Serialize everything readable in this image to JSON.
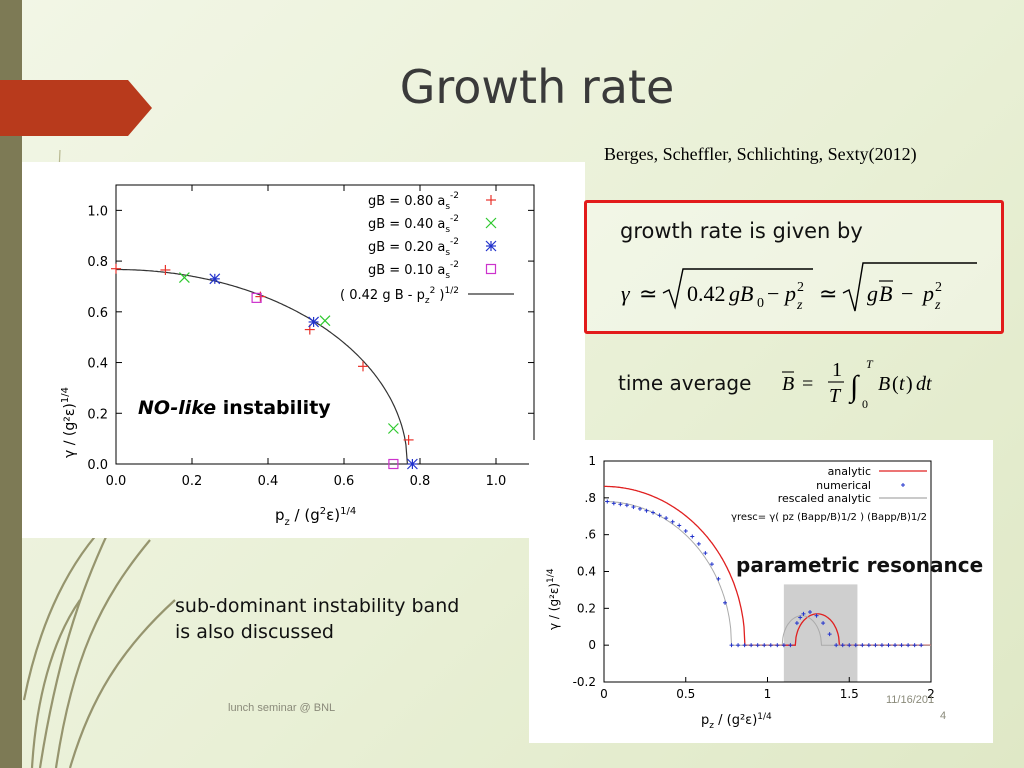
{
  "slide": {
    "title": "Growth rate",
    "citation": "Berges, Scheffler, Schlichting, Sexty(2012)",
    "formula_header": "growth rate is given by",
    "time_average_label": "time average",
    "subdominant_text_1": "sub-dominant instability band",
    "subdominant_text_2": "is also discussed",
    "footer_left": "lunch seminar @ BNL",
    "footer_date": "11/16/201",
    "footer_page": "4",
    "colors": {
      "accent": "#b83a1c",
      "box_border": "#e21b1b",
      "strip": "#7d7a55"
    }
  },
  "chart_data": [
    {
      "type": "scatter",
      "annotation_1": "NO-like",
      "annotation_2": "instability",
      "xlabel_base": "p",
      "xlabel_sub": "z",
      "xlabel_rest": " / (g",
      "xlabel_sup1": "2",
      "xlabel_eps": "ε)",
      "xlabel_sup2": "1/4",
      "ylabel": "γ / (g²ε)",
      "ylabel_sup": "1/4",
      "xlim": [
        0.0,
        1.1
      ],
      "ylim": [
        0.0,
        1.1
      ],
      "xticks": [
        "0.0",
        "0.2",
        "0.4",
        "0.6",
        "0.8",
        "1.0"
      ],
      "yticks": [
        "0.0",
        "0.2",
        "0.4",
        "0.6",
        "0.8",
        "1.0"
      ],
      "series": [
        {
          "name": "gB = 0.80 a",
          "name_sub": "s",
          "name_sup": "-2",
          "marker": "plus",
          "color": "#e8322a",
          "x": [
            0.0,
            0.13,
            0.38,
            0.51,
            0.65,
            0.77
          ],
          "y": [
            0.77,
            0.765,
            0.66,
            0.53,
            0.385,
            0.095
          ]
        },
        {
          "name": "gB = 0.40 a",
          "name_sub": "s",
          "name_sup": "-2",
          "marker": "cross",
          "color": "#2ec92e",
          "x": [
            0.18,
            0.55,
            0.73
          ],
          "y": [
            0.735,
            0.565,
            0.14
          ]
        },
        {
          "name": "gB = 0.20 a",
          "name_sub": "s",
          "name_sup": "-2",
          "marker": "star",
          "color": "#2233cc",
          "x": [
            0.26,
            0.52,
            0.78
          ],
          "y": [
            0.73,
            0.56,
            0.0
          ]
        },
        {
          "name": "gB = 0.10 a",
          "name_sub": "s",
          "name_sup": "-2",
          "marker": "square",
          "color": "#cc33cc",
          "x": [
            0.37,
            0.73
          ],
          "y": [
            0.655,
            0.0
          ]
        }
      ],
      "curve": {
        "name": "( 0.42 g B - p",
        "name_sub": "z",
        "name_sup": "2",
        "name_rest": " )",
        "name_sup2": "1/2",
        "coef": 0.42,
        "gB": 1.4,
        "color": "#333333"
      }
    },
    {
      "type": "line",
      "annotation": "parametric resonance",
      "xlabel": "p",
      "xlabel_sub": "z",
      "xlabel_rest": " / (g²ε)",
      "xlabel_sup": "1/4",
      "ylabel": "γ / (g²ε)",
      "ylabel_sup": "1/4",
      "xlim": [
        0,
        2
      ],
      "ylim": [
        -0.2,
        1
      ],
      "xticks": [
        "0",
        "0.5",
        "1",
        "1.5",
        "2"
      ],
      "yticks": [
        "1",
        ".8",
        ".6",
        "0.4",
        "0.2",
        "0",
        "-0.2"
      ],
      "ytick_values": [
        1,
        0.8,
        0.6,
        0.4,
        0.2,
        0,
        -0.2
      ],
      "xtick_values": [
        0,
        0.5,
        1,
        1.5,
        2
      ],
      "shaded_band": [
        1.1,
        1.55
      ],
      "legend_formula": "γresc= γ( pz (Bapp/B)1/2 ) (Bapp/B)1/2",
      "series": [
        {
          "name": "analytic",
          "color": "#e02020",
          "style": "line"
        },
        {
          "name": "numerical",
          "color": "#2233cc",
          "style": "points",
          "x": [
            0.02,
            0.06,
            0.1,
            0.14,
            0.18,
            0.22,
            0.26,
            0.3,
            0.34,
            0.38,
            0.42,
            0.46,
            0.5,
            0.54,
            0.58,
            0.62,
            0.66,
            0.7,
            0.74,
            0.78,
            0.82,
            0.86,
            0.9,
            0.94,
            0.98,
            1.02,
            1.06,
            1.1,
            1.14,
            1.18,
            1.2,
            1.22,
            1.26,
            1.3,
            1.34,
            1.38,
            1.42,
            1.46,
            1.5,
            1.54,
            1.58,
            1.62,
            1.66,
            1.7,
            1.74,
            1.78,
            1.82,
            1.86,
            1.9,
            1.94
          ],
          "y": [
            0.78,
            0.77,
            0.765,
            0.76,
            0.75,
            0.74,
            0.73,
            0.72,
            0.705,
            0.69,
            0.67,
            0.65,
            0.62,
            0.59,
            0.55,
            0.5,
            0.44,
            0.36,
            0.23,
            0.0,
            0.0,
            0.0,
            0.0,
            0.0,
            0.0,
            0.0,
            0.0,
            0.0,
            0.0,
            0.12,
            0.15,
            0.17,
            0.18,
            0.16,
            0.12,
            0.06,
            0.0,
            0.0,
            0.0,
            0.0,
            0.0,
            0.0,
            0.0,
            0.0,
            0.0,
            0.0,
            0.0,
            0.0,
            0.0,
            0.0
          ]
        },
        {
          "name": "rescaled analytic",
          "color": "#aaaaaa",
          "style": "line"
        }
      ]
    }
  ]
}
